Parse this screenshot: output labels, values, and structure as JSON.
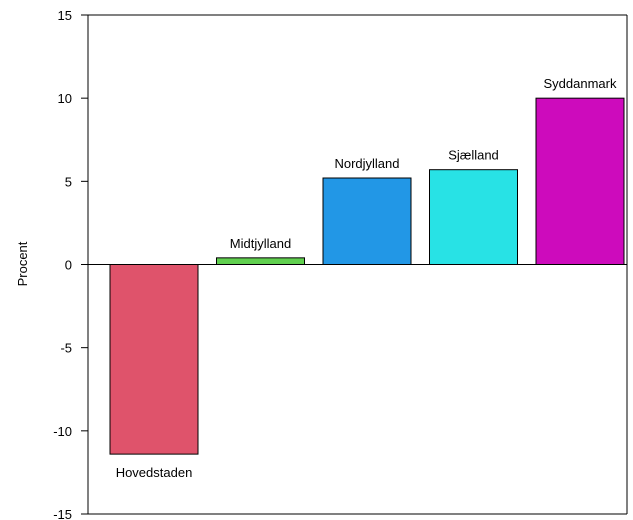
{
  "chart_data": {
    "type": "bar",
    "title": "",
    "xlabel": "",
    "ylabel": "Procent",
    "ylim": [
      -15,
      15
    ],
    "yticks": [
      -15,
      -10,
      -5,
      0,
      5,
      10,
      15
    ],
    "grid": false,
    "legend": "none",
    "categories": [
      "Hovedstaden",
      "Midtjylland",
      "Nordjylland",
      "Sjælland",
      "Syddanmark"
    ],
    "values": [
      -11.4,
      0.4,
      5.2,
      5.7,
      10.0
    ],
    "colors": [
      "#df536b",
      "#61d04f",
      "#2297e6",
      "#28e2e5",
      "#cd0bbc"
    ]
  }
}
